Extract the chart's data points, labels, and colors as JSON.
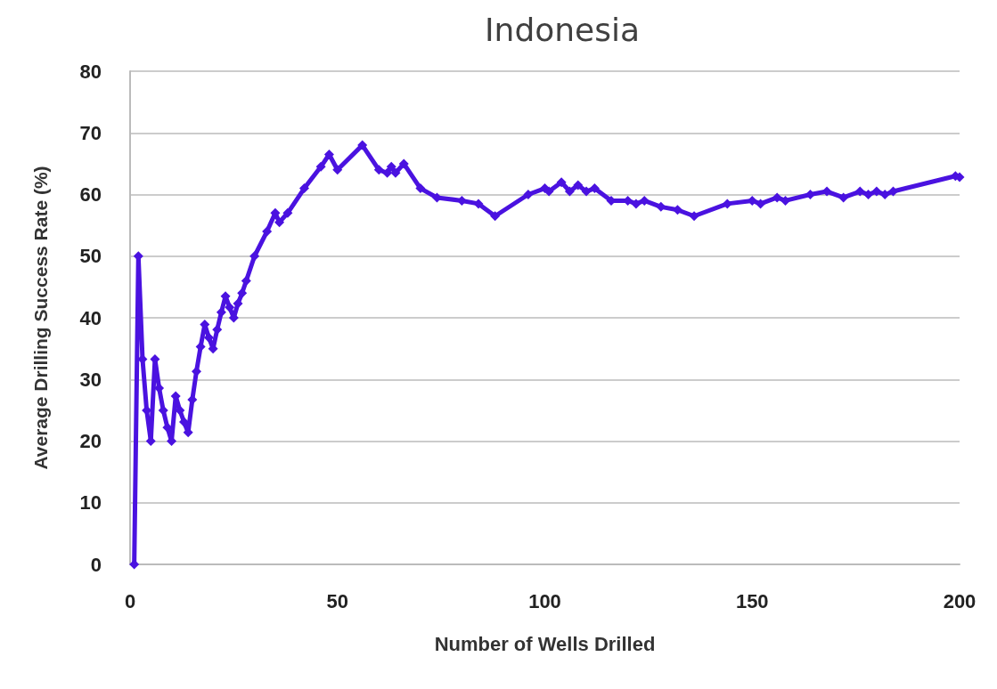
{
  "chart_data": {
    "type": "line",
    "title": "Indonesia",
    "xlabel": "Number of Wells Drilled",
    "ylabel": "Average Drilling Success Rate (%)",
    "series": [
      {
        "color": "#4a12e0",
        "x": [
          1,
          2,
          3,
          4,
          5,
          6,
          7,
          8,
          9,
          10,
          11,
          12,
          13,
          14,
          15,
          16,
          17,
          18,
          19,
          20,
          21,
          22,
          23,
          24,
          25,
          26,
          27,
          28,
          30,
          33,
          35,
          36,
          38,
          42,
          46,
          48,
          50,
          56,
          60,
          62,
          63,
          64,
          66,
          70,
          74,
          80,
          84,
          88,
          96,
          100,
          101,
          104,
          106,
          108,
          110,
          112,
          116,
          120,
          122,
          124,
          128,
          132,
          136,
          144,
          150,
          152,
          156,
          158,
          164,
          168,
          172,
          176,
          178,
          180,
          182,
          184,
          199,
          200
        ],
        "values": [
          0,
          50,
          33.3,
          25,
          20,
          33.3,
          28.6,
          25,
          22.2,
          20,
          27.3,
          25,
          23.1,
          21.4,
          26.7,
          31.3,
          35.3,
          38.9,
          36.8,
          35,
          38.1,
          40.9,
          43.5,
          41.7,
          40,
          42.3,
          44,
          46,
          50,
          54,
          57,
          55.5,
          57,
          61,
          64.5,
          66.5,
          64,
          68,
          64,
          63.5,
          64.5,
          63.5,
          65,
          61,
          59.5,
          59,
          58.5,
          56.5,
          60,
          61,
          60.5,
          62,
          60.5,
          61.5,
          60.5,
          61,
          59,
          59,
          58.5,
          59,
          58,
          57.5,
          56.5,
          58.5,
          59,
          58.5,
          59.5,
          59,
          60,
          60.5,
          59.5,
          60.5,
          60,
          60.5,
          60,
          60.5,
          63,
          62.8
        ]
      }
    ],
    "xlim": [
      0,
      200
    ],
    "xticks": [
      0,
      50,
      100,
      150,
      200
    ],
    "ylim": [
      0,
      80
    ],
    "yticks": [
      0,
      10,
      20,
      30,
      40,
      50,
      60,
      70,
      80
    ],
    "grid": "y",
    "marker": "diamond",
    "line_style": "solid"
  }
}
